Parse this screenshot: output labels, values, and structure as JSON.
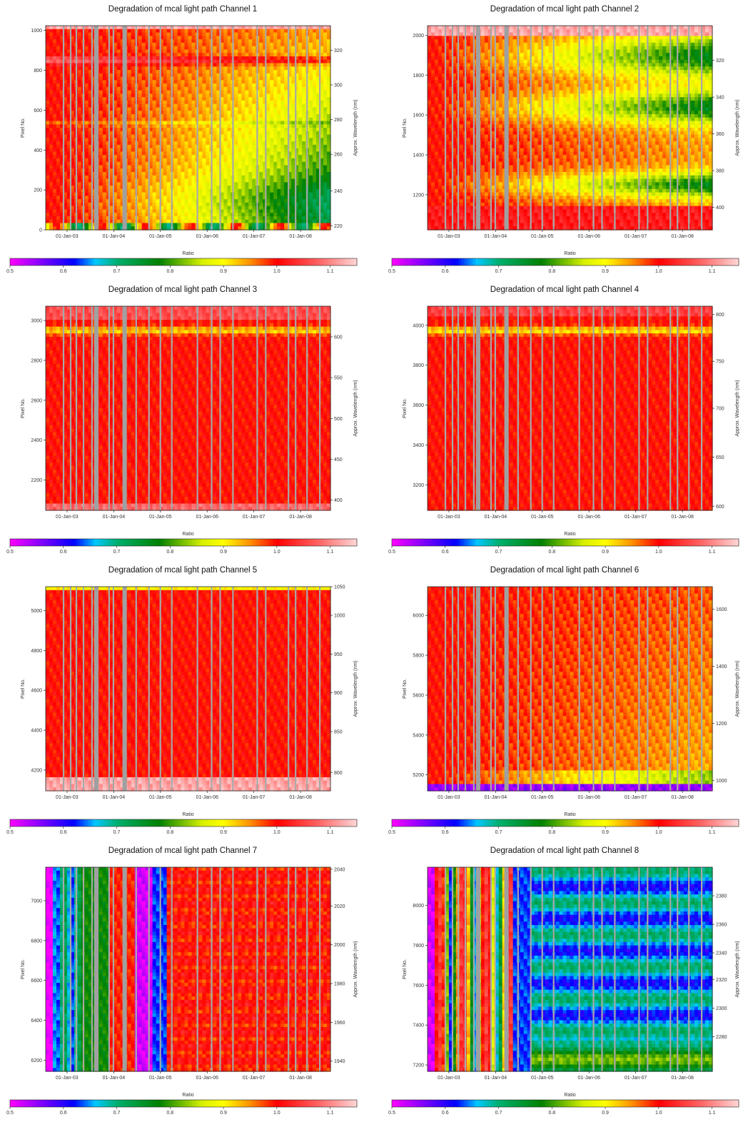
{
  "colorbar": {
    "label": "Ratio",
    "ticks": [
      "0.5",
      "0.6",
      "0.7",
      "0.8",
      "0.9",
      "1.0",
      "1.1"
    ],
    "range": [
      0.5,
      1.15
    ],
    "stops": [
      {
        "v": 0.5,
        "c": "#ff00ff"
      },
      {
        "v": 0.57,
        "c": "#6a00ff"
      },
      {
        "v": 0.62,
        "c": "#0000ff"
      },
      {
        "v": 0.66,
        "c": "#00c8ff"
      },
      {
        "v": 0.7,
        "c": "#00b070"
      },
      {
        "v": 0.78,
        "c": "#008000"
      },
      {
        "v": 0.86,
        "c": "#d8f000"
      },
      {
        "v": 0.9,
        "c": "#ffff00"
      },
      {
        "v": 0.95,
        "c": "#ff9000"
      },
      {
        "v": 1.0,
        "c": "#ff0000"
      },
      {
        "v": 1.08,
        "c": "#ff6666"
      },
      {
        "v": 1.15,
        "c": "#ffd6d6"
      }
    ]
  },
  "x_ticks": [
    "01-Jan-03",
    "01-Jan-04",
    "01-Jan-05",
    "01-Jan-06",
    "01-Jan-07",
    "01-Jan-08"
  ],
  "ylabel_left": "Pixel No.",
  "ylabel_right": "Approx. Wavelength (nm)",
  "chart_data": [
    {
      "type": "heatmap",
      "title": "Degradation of mcal light path Channel 1",
      "ylim": [
        0,
        1024
      ],
      "left_ticks": [
        {
          "v": 0,
          "t": "0"
        },
        {
          "v": 200,
          "t": "200"
        },
        {
          "v": 400,
          "t": "400"
        },
        {
          "v": 600,
          "t": "600"
        },
        {
          "v": 800,
          "t": "800"
        },
        {
          "v": 1000,
          "t": "1000"
        }
      ],
      "right_ticks": [
        {
          "f": 0.02,
          "t": "220"
        },
        {
          "f": 0.19,
          "t": "240"
        },
        {
          "f": 0.37,
          "t": "260"
        },
        {
          "f": 0.54,
          "t": "280"
        },
        {
          "f": 0.71,
          "t": "300"
        },
        {
          "f": 0.88,
          "t": "320"
        }
      ],
      "pattern": "ch1"
    },
    {
      "type": "heatmap",
      "title": "Degradation of mcal light path Channel 2",
      "ylim": [
        1024,
        2048
      ],
      "left_ticks": [
        {
          "v": 1200,
          "t": "1200"
        },
        {
          "v": 1400,
          "t": "1400"
        },
        {
          "v": 1600,
          "t": "1600"
        },
        {
          "v": 1800,
          "t": "1800"
        },
        {
          "v": 2000,
          "t": "2000"
        }
      ],
      "right_ticks": [
        {
          "f": 0.11,
          "t": "400"
        },
        {
          "f": 0.29,
          "t": "380"
        },
        {
          "f": 0.47,
          "t": "360"
        },
        {
          "f": 0.65,
          "t": "340"
        },
        {
          "f": 0.83,
          "t": "320"
        }
      ],
      "pattern": "ch2"
    },
    {
      "type": "heatmap",
      "title": "Degradation of mcal light path Channel 3",
      "ylim": [
        2048,
        3072
      ],
      "left_ticks": [
        {
          "v": 2200,
          "t": "2200"
        },
        {
          "v": 2400,
          "t": "2400"
        },
        {
          "v": 2600,
          "t": "2600"
        },
        {
          "v": 2800,
          "t": "2800"
        },
        {
          "v": 3000,
          "t": "3000"
        }
      ],
      "right_ticks": [
        {
          "f": 0.05,
          "t": "400"
        },
        {
          "f": 0.25,
          "t": "450"
        },
        {
          "f": 0.45,
          "t": "500"
        },
        {
          "f": 0.65,
          "t": "550"
        },
        {
          "f": 0.85,
          "t": "600"
        }
      ],
      "pattern": "ch3"
    },
    {
      "type": "heatmap",
      "title": "Degradation of mcal light path Channel 4",
      "ylim": [
        3072,
        4096
      ],
      "left_ticks": [
        {
          "v": 3200,
          "t": "3200"
        },
        {
          "v": 3400,
          "t": "3400"
        },
        {
          "v": 3600,
          "t": "3600"
        },
        {
          "v": 3800,
          "t": "3800"
        },
        {
          "v": 4000,
          "t": "4000"
        }
      ],
      "right_ticks": [
        {
          "f": 0.02,
          "t": "600"
        },
        {
          "f": 0.26,
          "t": "650"
        },
        {
          "f": 0.5,
          "t": "700"
        },
        {
          "f": 0.73,
          "t": "750"
        },
        {
          "f": 0.96,
          "t": "800"
        }
      ],
      "pattern": "ch4"
    },
    {
      "type": "heatmap",
      "title": "Degradation of mcal light path Channel 5",
      "ylim": [
        4096,
        5120
      ],
      "left_ticks": [
        {
          "v": 4200,
          "t": "4200"
        },
        {
          "v": 4400,
          "t": "4400"
        },
        {
          "v": 4600,
          "t": "4600"
        },
        {
          "v": 4800,
          "t": "4800"
        },
        {
          "v": 5000,
          "t": "5000"
        }
      ],
      "right_ticks": [
        {
          "f": 0.09,
          "t": "800"
        },
        {
          "f": 0.29,
          "t": "850"
        },
        {
          "f": 0.48,
          "t": "900"
        },
        {
          "f": 0.67,
          "t": "950"
        },
        {
          "f": 0.86,
          "t": "1000"
        },
        {
          "f": 1.0,
          "t": "1050"
        }
      ],
      "pattern": "ch5"
    },
    {
      "type": "heatmap",
      "title": "Degradation of mcal light path Channel 6",
      "ylim": [
        5120,
        6144
      ],
      "left_ticks": [
        {
          "v": 5200,
          "t": "5200"
        },
        {
          "v": 5400,
          "t": "5400"
        },
        {
          "v": 5600,
          "t": "5600"
        },
        {
          "v": 5800,
          "t": "5800"
        },
        {
          "v": 6000,
          "t": "6000"
        }
      ],
      "right_ticks": [
        {
          "f": 0.05,
          "t": "1000"
        },
        {
          "f": 0.33,
          "t": "1200"
        },
        {
          "f": 0.61,
          "t": "1400"
        },
        {
          "f": 0.89,
          "t": "1600"
        }
      ],
      "pattern": "ch6"
    },
    {
      "type": "heatmap",
      "title": "Degradation of mcal light path Channel 7",
      "ylim": [
        6144,
        7168
      ],
      "left_ticks": [
        {
          "v": 6200,
          "t": "6200"
        },
        {
          "v": 6400,
          "t": "6400"
        },
        {
          "v": 6600,
          "t": "6600"
        },
        {
          "v": 6800,
          "t": "6800"
        },
        {
          "v": 7000,
          "t": "7000"
        }
      ],
      "right_ticks": [
        {
          "f": 0.05,
          "t": "1940"
        },
        {
          "f": 0.24,
          "t": "1960"
        },
        {
          "f": 0.43,
          "t": "1980"
        },
        {
          "f": 0.62,
          "t": "2000"
        },
        {
          "f": 0.81,
          "t": "2020"
        },
        {
          "f": 0.99,
          "t": "2040"
        }
      ],
      "pattern": "ch7"
    },
    {
      "type": "heatmap",
      "title": "Degradation of mcal light path Channel 8",
      "ylim": [
        7168,
        8192
      ],
      "left_ticks": [
        {
          "v": 7200,
          "t": "7200"
        },
        {
          "v": 7400,
          "t": "7400"
        },
        {
          "v": 7600,
          "t": "7600"
        },
        {
          "v": 7800,
          "t": "7800"
        },
        {
          "v": 8000,
          "t": "8000"
        }
      ],
      "right_ticks": [
        {
          "f": 0.17,
          "t": "2280"
        },
        {
          "f": 0.31,
          "t": "2300"
        },
        {
          "f": 0.45,
          "t": "2320"
        },
        {
          "f": 0.58,
          "t": "2340"
        },
        {
          "f": 0.72,
          "t": "2360"
        },
        {
          "f": 0.86,
          "t": "2380"
        }
      ],
      "pattern": "ch8"
    }
  ]
}
